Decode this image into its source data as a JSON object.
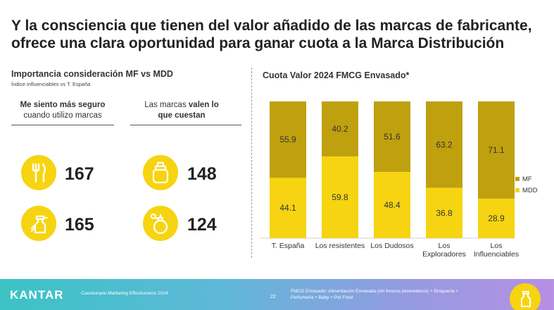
{
  "title": {
    "line1": "Y la consciencia que tienen del valor añadido de las marcas de fabricante,",
    "line2": "ofrece una clara oportunidad para ganar cuota a la Marca Distribución"
  },
  "left": {
    "heading": "Importancia consideración MF vs MDD",
    "subheading": "Índice influenciables vs T. España",
    "col1": {
      "bold": "Me siento más seguro",
      "rest": "cuando utilizo marcas"
    },
    "col2": {
      "line1_pre": "Las marcas ",
      "line1_bold": "valen lo",
      "line2": "que cuestan"
    },
    "values": [
      {
        "icon": "cutlery-icon",
        "value": "167"
      },
      {
        "icon": "spray-bottle-icon",
        "value": "165"
      },
      {
        "icon": "cosmetic-jar-icon",
        "value": "148"
      },
      {
        "icon": "perfume-bottle-icon",
        "value": "124"
      }
    ]
  },
  "right": {
    "heading": "Cuota Valor 2024 FMCG Envasado*"
  },
  "chart_data": {
    "type": "bar",
    "stacked": true,
    "title": "Cuota Valor 2024 FMCG Envasado*",
    "categories": [
      [
        "T. España"
      ],
      [
        "Los resistentes"
      ],
      [
        "Los Dudosos"
      ],
      [
        "Los",
        "Exploradores"
      ],
      [
        "Los",
        "Influenciables"
      ]
    ],
    "series": [
      {
        "name": "MDD",
        "color": "#f6d411",
        "values": [
          44.1,
          59.8,
          48.4,
          36.8,
          28.9
        ]
      },
      {
        "name": "MF",
        "color": "#bfa00f",
        "values": [
          55.9,
          40.2,
          51.6,
          63.2,
          71.1
        ]
      }
    ],
    "ylim": [
      0,
      100
    ],
    "legend_position": "right"
  },
  "footer": {
    "brand": "KANTAR",
    "source": "Cuestionario Marketing Effectiveness 2024",
    "page": "22",
    "note": "FMCG Envasado: Alimentación Envasada (sin frescos perecederos) + Droguería + Perfumería + Baby + Pet Food"
  }
}
